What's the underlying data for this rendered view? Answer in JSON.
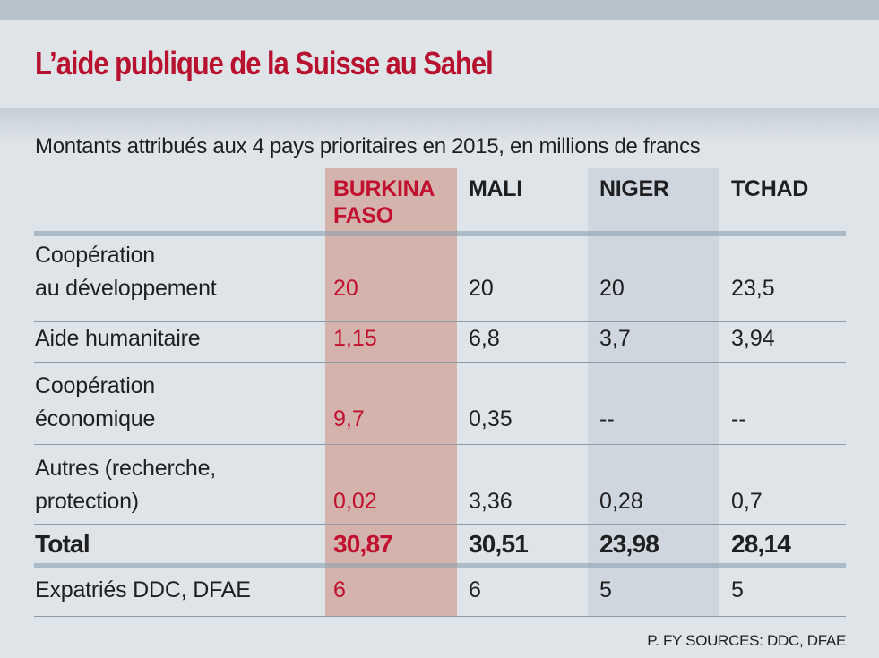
{
  "title": "L’aide publique de la Suisse au Sahel",
  "subtitle": "Montants attribués aux 4 pays prioritaires en 2015, en millions de francs",
  "source": "P. FY SOURCES: DDC, DFAE",
  "colors": {
    "accent": "#c2102f",
    "highlight_burkina": "#d4b3ad",
    "highlight_niger": "#cfd6de",
    "background": "#dfe4e8"
  },
  "chart_data": {
    "type": "table",
    "title": "L’aide publique de la Suisse au Sahel",
    "subtitle": "Montants attribués aux 4 pays prioritaires en 2015, en millions de francs",
    "columns": [
      "BURKINA FASO",
      "MALI",
      "NIGER",
      "TCHAD"
    ],
    "columns_display": [
      "BURKINA\nFASO",
      "MALI",
      "NIGER",
      "TCHAD"
    ],
    "rows": [
      {
        "label": "Coopération au développement",
        "label_lines": [
          "Coopération",
          "au développement"
        ],
        "values": [
          "20",
          "20",
          "20",
          "23,5"
        ]
      },
      {
        "label": "Aide humanitaire",
        "label_lines": [
          "Aide humanitaire"
        ],
        "values": [
          "1,15",
          "6,8",
          "3,7",
          "3,94"
        ]
      },
      {
        "label": "Coopération économique",
        "label_lines": [
          "Coopération",
          "économique"
        ],
        "values": [
          "9,7",
          "0,35",
          "--",
          "--"
        ]
      },
      {
        "label": "Autres (recherche, protection)",
        "label_lines": [
          "Autres (recherche,",
          "protection)"
        ],
        "values": [
          "0,02",
          "3,36",
          "0,28",
          "0,7"
        ]
      },
      {
        "label": "Total",
        "label_lines": [
          "Total"
        ],
        "values": [
          "30,87",
          "30,51",
          "23,98",
          "28,14"
        ]
      },
      {
        "label": "Expatriés DDC, DFAE",
        "label_lines": [
          "Expatriés DDC, DFAE"
        ],
        "values": [
          "6",
          "6",
          "5",
          "5"
        ]
      }
    ],
    "highlighted_column": "BURKINA FASO"
  }
}
